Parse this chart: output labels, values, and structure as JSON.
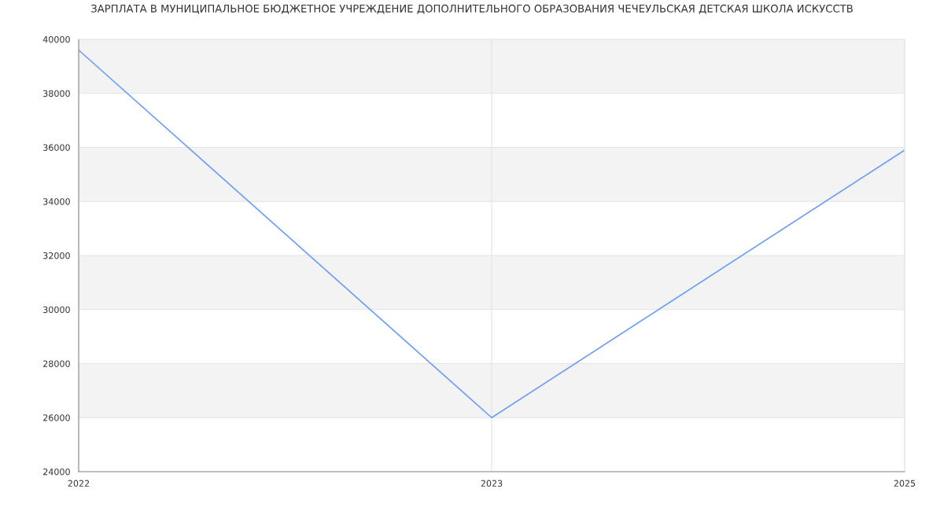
{
  "chart_data": {
    "type": "line",
    "title": "ЗАРПЛАТА В МУНИЦИПАЛЬНОЕ БЮДЖЕТНОЕ УЧРЕЖДЕНИЕ ДОПОЛНИТЕЛЬНОГО ОБРАЗОВАНИЯ ЧЕЧЕУЛЬСКАЯ ДЕТСКАЯ ШКОЛА ИСКУССТВ",
    "categories": [
      "2022",
      "2023",
      "2025"
    ],
    "series": [
      {
        "color": "#6d9ef6",
        "values": [
          39600,
          26000,
          35900
        ]
      }
    ],
    "ylim": [
      24000,
      40000
    ],
    "yticks": [
      24000,
      26000,
      28000,
      30000,
      32000,
      34000,
      36000,
      38000,
      40000
    ],
    "grid": true,
    "marker": "none",
    "line_style": "solid"
  }
}
